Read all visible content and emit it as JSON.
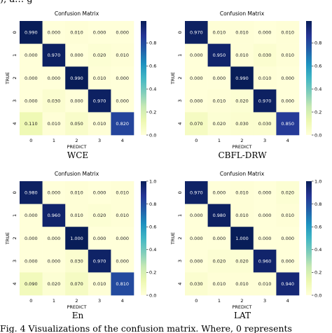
{
  "figure": {
    "top_caption": "), a… g",
    "bottom_caption": "Fig. 4 Visualizations of the confusion matrix. Where, 0 represents",
    "colormap": "YlGnBu"
  },
  "chart_data": [
    {
      "type": "heatmap",
      "title": "Confusion Matrix",
      "caption": "WCE",
      "xlabel": "PREDICT",
      "ylabel": "TRUE",
      "x": [
        "0",
        "1",
        "2",
        "3",
        "4"
      ],
      "y": [
        "0",
        "1",
        "2",
        "3",
        "4"
      ],
      "values": [
        [
          0.99,
          0.0,
          0.01,
          0.0,
          0.0
        ],
        [
          0.0,
          0.97,
          0.0,
          0.02,
          0.01
        ],
        [
          0.0,
          0.0,
          0.99,
          0.01,
          0.0
        ],
        [
          0.0,
          0.03,
          0.0,
          0.97,
          0.0
        ],
        [
          0.11,
          0.01,
          0.05,
          0.01,
          0.82
        ]
      ],
      "colorbar_ticks": [
        "0.0",
        "0.2",
        "0.4",
        "0.6",
        "0.8"
      ],
      "vmin": 0,
      "vmax": 0.99
    },
    {
      "type": "heatmap",
      "title": "Confusion Matrix",
      "caption": "CBFL-DRW",
      "xlabel": "PREDICT",
      "ylabel": "TRUE",
      "x": [
        "0",
        "1",
        "2",
        "3",
        "4"
      ],
      "y": [
        "0",
        "1",
        "2",
        "3",
        "4"
      ],
      "values": [
        [
          0.97,
          0.01,
          0.01,
          0.0,
          0.01
        ],
        [
          0.0,
          0.95,
          0.01,
          0.03,
          0.01
        ],
        [
          0.0,
          0.0,
          0.99,
          0.01,
          0.0
        ],
        [
          0.0,
          0.01,
          0.02,
          0.97,
          0.0
        ],
        [
          0.07,
          0.02,
          0.03,
          0.03,
          0.85
        ]
      ],
      "colorbar_ticks": [
        "0.0",
        "0.2",
        "0.4",
        "0.6",
        "0.8"
      ],
      "vmin": 0,
      "vmax": 0.99
    },
    {
      "type": "heatmap",
      "title": "Confusion Matrix",
      "caption": "En",
      "xlabel": "PREDICT",
      "ylabel": "TRUE",
      "x": [
        "0",
        "1",
        "2",
        "3",
        "4"
      ],
      "y": [
        "0",
        "1",
        "2",
        "3",
        "4"
      ],
      "values": [
        [
          0.98,
          0.0,
          0.01,
          0.0,
          0.01
        ],
        [
          0.0,
          0.96,
          0.01,
          0.02,
          0.01
        ],
        [
          0.0,
          0.0,
          1.0,
          0.0,
          0.0
        ],
        [
          0.0,
          0.0,
          0.03,
          0.97,
          0.0
        ],
        [
          0.09,
          0.02,
          0.07,
          0.01,
          0.81
        ]
      ],
      "colorbar_ticks": [
        "0.0",
        "0.2",
        "0.4",
        "0.6",
        "0.8",
        "1.0"
      ],
      "vmin": 0,
      "vmax": 1.0
    },
    {
      "type": "heatmap",
      "title": "Confusion Matrix",
      "caption": "LAT",
      "xlabel": "PREDICT",
      "ylabel": "TRUE",
      "x": [
        "0",
        "1",
        "2",
        "3",
        "4"
      ],
      "y": [
        "0",
        "1",
        "2",
        "3",
        "4"
      ],
      "values": [
        [
          0.97,
          0.0,
          0.01,
          0.0,
          0.02
        ],
        [
          0.0,
          0.98,
          0.01,
          0.0,
          0.01
        ],
        [
          0.0,
          0.0,
          1.0,
          0.0,
          0.0
        ],
        [
          0.0,
          0.02,
          0.02,
          0.96,
          0.0
        ],
        [
          0.03,
          0.01,
          0.01,
          0.01,
          0.94
        ]
      ],
      "colorbar_ticks": [
        "0.0",
        "0.2",
        "0.4",
        "0.6",
        "0.8",
        "1.0"
      ],
      "vmin": 0,
      "vmax": 1.0
    }
  ]
}
